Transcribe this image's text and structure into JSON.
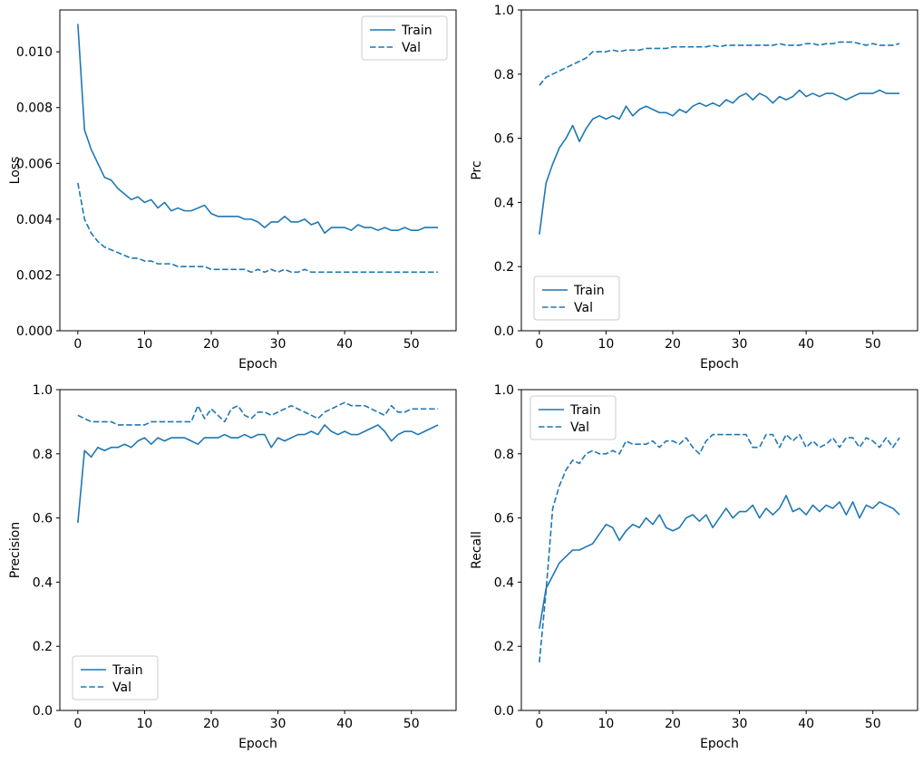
{
  "figure": {
    "background": "#ffffff",
    "line_color": "#1f77b4",
    "axis_color": "#000000",
    "legend_border_color": "#cccccc",
    "legend_labels": [
      "Train",
      "Val"
    ]
  },
  "chart_data": [
    {
      "type": "line",
      "name": "loss",
      "title": "",
      "xlabel": "Epoch",
      "ylabel": "Loss",
      "xlim": [
        -2.7,
        56.7
      ],
      "ylim": [
        0,
        0.0115
      ],
      "x_ticks": [
        0,
        10,
        20,
        30,
        40,
        50
      ],
      "x_tick_labels": [
        "0",
        "10",
        "20",
        "30",
        "40",
        "50"
      ],
      "y_ticks": [
        0.0,
        0.002,
        0.004,
        0.006,
        0.008,
        0.01
      ],
      "y_tick_labels": [
        "0.000",
        "0.002",
        "0.004",
        "0.006",
        "0.008",
        "0.010"
      ],
      "legend_pos": "upper-right",
      "x_start": 0,
      "series": [
        {
          "name": "Train",
          "style": "solid",
          "values": [
            0.011,
            0.0072,
            0.0065,
            0.006,
            0.0055,
            0.0054,
            0.0051,
            0.0049,
            0.0047,
            0.0048,
            0.0046,
            0.0047,
            0.0044,
            0.0046,
            0.0043,
            0.0044,
            0.0043,
            0.0043,
            0.0044,
            0.0045,
            0.0042,
            0.0041,
            0.0041,
            0.0041,
            0.0041,
            0.004,
            0.004,
            0.0039,
            0.0037,
            0.0039,
            0.0039,
            0.0041,
            0.0039,
            0.0039,
            0.004,
            0.0038,
            0.0039,
            0.0035,
            0.0037,
            0.0037,
            0.0037,
            0.0036,
            0.0038,
            0.0037,
            0.0037,
            0.0036,
            0.0037,
            0.0036,
            0.0036,
            0.0037,
            0.0036,
            0.0036,
            0.0037,
            0.0037,
            0.0037
          ]
        },
        {
          "name": "Val",
          "style": "dashed",
          "values": [
            0.0053,
            0.004,
            0.0035,
            0.0032,
            0.003,
            0.0029,
            0.0028,
            0.0027,
            0.0026,
            0.0026,
            0.0025,
            0.0025,
            0.0024,
            0.0024,
            0.0024,
            0.0023,
            0.0023,
            0.0023,
            0.0023,
            0.0023,
            0.0022,
            0.0022,
            0.0022,
            0.0022,
            0.0022,
            0.0022,
            0.0021,
            0.0022,
            0.0021,
            0.0022,
            0.0021,
            0.0022,
            0.0021,
            0.0021,
            0.0022,
            0.0021,
            0.0021,
            0.0021,
            0.0021,
            0.0021,
            0.0021,
            0.0021,
            0.0021,
            0.0021,
            0.0021,
            0.0021,
            0.0021,
            0.0021,
            0.0021,
            0.0021,
            0.0021,
            0.0021,
            0.0021,
            0.0021,
            0.0021
          ]
        }
      ]
    },
    {
      "type": "line",
      "name": "prc",
      "title": "",
      "xlabel": "Epoch",
      "ylabel": "Prc",
      "xlim": [
        -2.7,
        56.7
      ],
      "ylim": [
        0,
        1.0
      ],
      "x_ticks": [
        0,
        10,
        20,
        30,
        40,
        50
      ],
      "x_tick_labels": [
        "0",
        "10",
        "20",
        "30",
        "40",
        "50"
      ],
      "y_ticks": [
        0.0,
        0.2,
        0.4,
        0.6,
        0.8,
        1.0
      ],
      "y_tick_labels": [
        "0.0",
        "0.2",
        "0.4",
        "0.6",
        "0.8",
        "1.0"
      ],
      "legend_pos": "lower-left",
      "x_start": 0,
      "series": [
        {
          "name": "Train",
          "style": "solid",
          "values": [
            0.3,
            0.46,
            0.52,
            0.57,
            0.6,
            0.64,
            0.59,
            0.63,
            0.66,
            0.67,
            0.66,
            0.67,
            0.66,
            0.7,
            0.67,
            0.69,
            0.7,
            0.69,
            0.68,
            0.68,
            0.67,
            0.69,
            0.68,
            0.7,
            0.71,
            0.7,
            0.71,
            0.7,
            0.72,
            0.71,
            0.73,
            0.74,
            0.72,
            0.74,
            0.73,
            0.71,
            0.73,
            0.72,
            0.73,
            0.75,
            0.73,
            0.74,
            0.73,
            0.74,
            0.74,
            0.73,
            0.72,
            0.73,
            0.74,
            0.74,
            0.74,
            0.75,
            0.74,
            0.74,
            0.74
          ]
        },
        {
          "name": "Val",
          "style": "dashed",
          "values": [
            0.765,
            0.79,
            0.8,
            0.81,
            0.82,
            0.83,
            0.84,
            0.85,
            0.87,
            0.87,
            0.87,
            0.875,
            0.87,
            0.875,
            0.875,
            0.875,
            0.88,
            0.88,
            0.88,
            0.88,
            0.885,
            0.885,
            0.885,
            0.885,
            0.885,
            0.885,
            0.89,
            0.885,
            0.89,
            0.89,
            0.89,
            0.89,
            0.89,
            0.89,
            0.89,
            0.89,
            0.895,
            0.89,
            0.89,
            0.89,
            0.895,
            0.895,
            0.89,
            0.895,
            0.895,
            0.9,
            0.9,
            0.9,
            0.895,
            0.89,
            0.895,
            0.89,
            0.89,
            0.89,
            0.895
          ]
        }
      ]
    },
    {
      "type": "line",
      "name": "precision",
      "title": "",
      "xlabel": "Epoch",
      "ylabel": "Precision",
      "xlim": [
        -2.7,
        56.7
      ],
      "ylim": [
        0,
        1.0
      ],
      "x_ticks": [
        0,
        10,
        20,
        30,
        40,
        50
      ],
      "x_tick_labels": [
        "0",
        "10",
        "20",
        "30",
        "40",
        "50"
      ],
      "y_ticks": [
        0.0,
        0.2,
        0.4,
        0.6,
        0.8,
        1.0
      ],
      "y_tick_labels": [
        "0.0",
        "0.2",
        "0.4",
        "0.6",
        "0.8",
        "1.0"
      ],
      "legend_pos": "lower-left",
      "x_start": 0,
      "series": [
        {
          "name": "Train",
          "style": "solid",
          "values": [
            0.585,
            0.81,
            0.79,
            0.82,
            0.81,
            0.82,
            0.82,
            0.83,
            0.82,
            0.84,
            0.85,
            0.83,
            0.85,
            0.84,
            0.85,
            0.85,
            0.85,
            0.84,
            0.83,
            0.85,
            0.85,
            0.85,
            0.86,
            0.85,
            0.85,
            0.86,
            0.85,
            0.86,
            0.86,
            0.82,
            0.85,
            0.84,
            0.85,
            0.86,
            0.86,
            0.87,
            0.86,
            0.89,
            0.87,
            0.86,
            0.87,
            0.86,
            0.86,
            0.87,
            0.88,
            0.89,
            0.87,
            0.84,
            0.86,
            0.87,
            0.87,
            0.86,
            0.87,
            0.88,
            0.89
          ]
        },
        {
          "name": "Val",
          "style": "dashed",
          "values": [
            0.92,
            0.91,
            0.9,
            0.9,
            0.9,
            0.9,
            0.89,
            0.89,
            0.89,
            0.89,
            0.89,
            0.9,
            0.9,
            0.9,
            0.9,
            0.9,
            0.9,
            0.9,
            0.95,
            0.91,
            0.94,
            0.92,
            0.9,
            0.94,
            0.95,
            0.92,
            0.91,
            0.93,
            0.93,
            0.92,
            0.93,
            0.94,
            0.95,
            0.94,
            0.93,
            0.92,
            0.91,
            0.93,
            0.94,
            0.95,
            0.96,
            0.95,
            0.95,
            0.95,
            0.94,
            0.93,
            0.92,
            0.95,
            0.93,
            0.93,
            0.94,
            0.94,
            0.94,
            0.94,
            0.94
          ]
        }
      ]
    },
    {
      "type": "line",
      "name": "recall",
      "title": "",
      "xlabel": "Epoch",
      "ylabel": "Recall",
      "xlim": [
        -2.7,
        56.7
      ],
      "ylim": [
        0,
        1.0
      ],
      "x_ticks": [
        0,
        10,
        20,
        30,
        40,
        50
      ],
      "x_tick_labels": [
        "0",
        "10",
        "20",
        "30",
        "40",
        "50"
      ],
      "y_ticks": [
        0.0,
        0.2,
        0.4,
        0.6,
        0.8,
        1.0
      ],
      "y_tick_labels": [
        "0.0",
        "0.2",
        "0.4",
        "0.6",
        "0.8",
        "1.0"
      ],
      "legend_pos": "upper-left",
      "x_start": 0,
      "series": [
        {
          "name": "Train",
          "style": "solid",
          "values": [
            0.255,
            0.38,
            0.42,
            0.46,
            0.48,
            0.5,
            0.5,
            0.51,
            0.52,
            0.55,
            0.58,
            0.57,
            0.53,
            0.56,
            0.58,
            0.57,
            0.6,
            0.58,
            0.61,
            0.57,
            0.56,
            0.57,
            0.6,
            0.61,
            0.59,
            0.61,
            0.57,
            0.6,
            0.63,
            0.6,
            0.62,
            0.62,
            0.64,
            0.6,
            0.63,
            0.61,
            0.63,
            0.67,
            0.62,
            0.63,
            0.61,
            0.64,
            0.62,
            0.64,
            0.63,
            0.65,
            0.61,
            0.65,
            0.6,
            0.64,
            0.63,
            0.65,
            0.64,
            0.63,
            0.61
          ]
        },
        {
          "name": "Val",
          "style": "dashed",
          "values": [
            0.15,
            0.37,
            0.63,
            0.7,
            0.75,
            0.78,
            0.77,
            0.8,
            0.81,
            0.8,
            0.8,
            0.81,
            0.8,
            0.84,
            0.83,
            0.83,
            0.83,
            0.84,
            0.82,
            0.84,
            0.84,
            0.83,
            0.85,
            0.82,
            0.8,
            0.84,
            0.86,
            0.86,
            0.86,
            0.86,
            0.86,
            0.86,
            0.82,
            0.82,
            0.86,
            0.86,
            0.82,
            0.86,
            0.84,
            0.86,
            0.82,
            0.84,
            0.82,
            0.83,
            0.85,
            0.82,
            0.85,
            0.85,
            0.82,
            0.85,
            0.84,
            0.82,
            0.85,
            0.82,
            0.85
          ]
        }
      ]
    }
  ]
}
